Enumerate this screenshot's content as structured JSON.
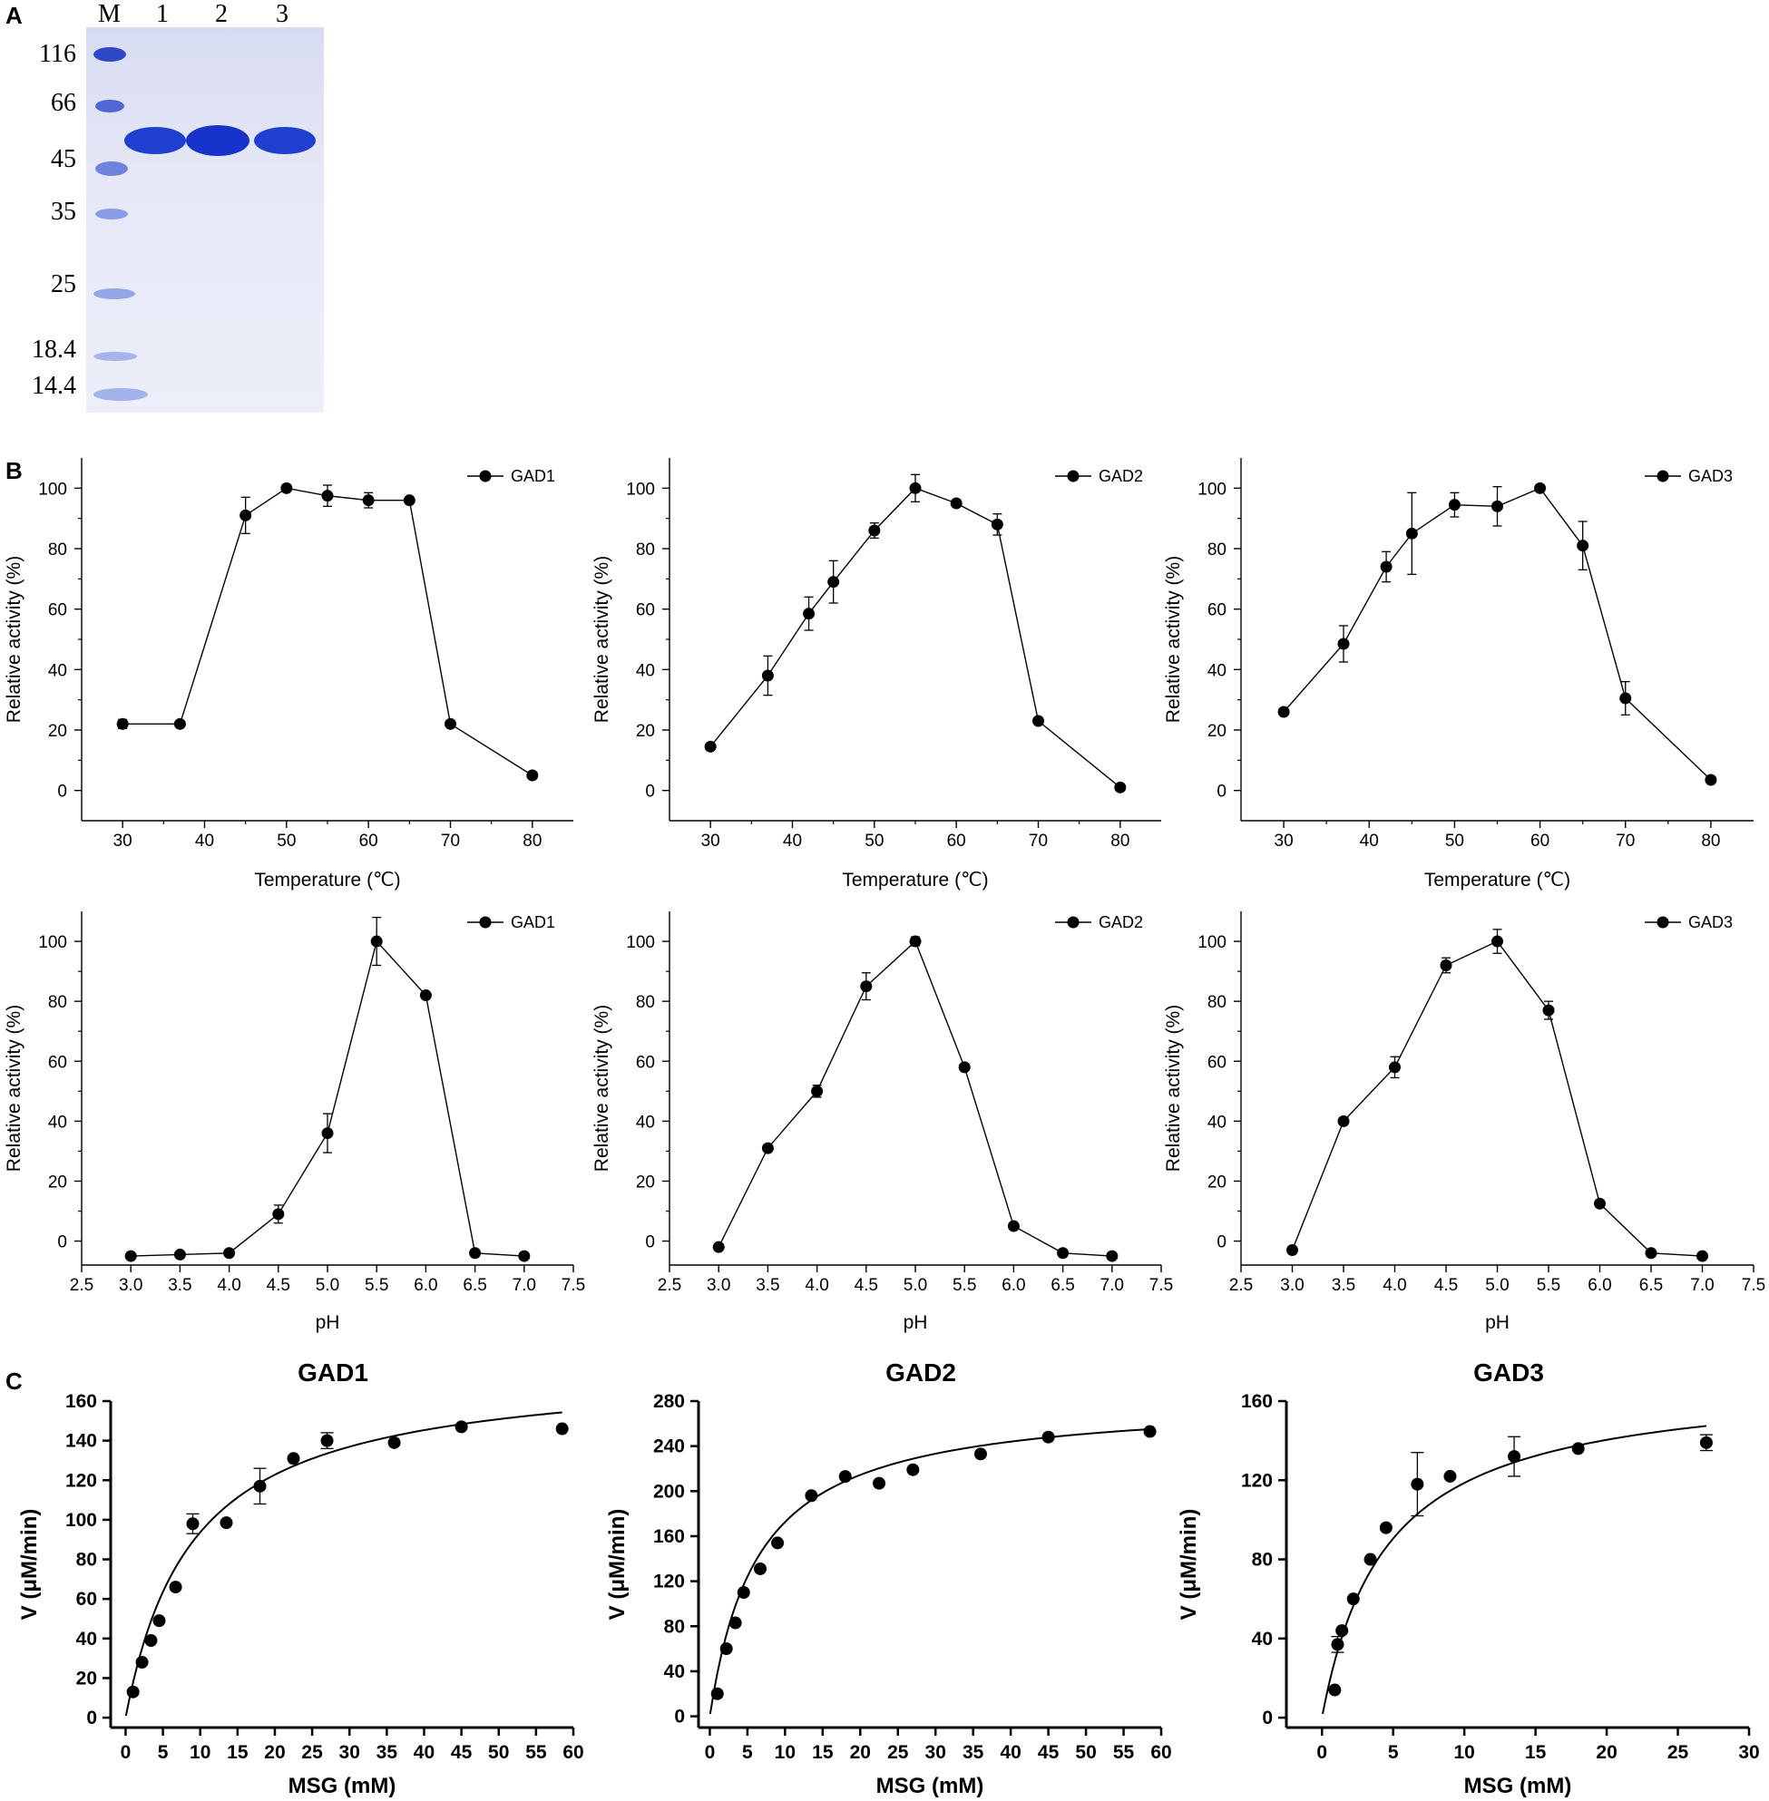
{
  "panels": {
    "a": "A",
    "b": "B",
    "c": "C"
  },
  "gel": {
    "lane_labels": [
      "M",
      "1",
      "2",
      "3"
    ],
    "marker_labels": [
      "116",
      "66",
      "45",
      "35",
      "25",
      "18.4",
      "14.4"
    ],
    "band_color": "#1f3fd0"
  },
  "chart_data": [
    {
      "id": "temp-gad1",
      "type": "line",
      "legend": "GAD1",
      "xlabel": "Temperature (℃)",
      "ylabel": "Relative activity (%)",
      "xlim": [
        25,
        85
      ],
      "ylim": [
        -10,
        110
      ],
      "xticks": [
        30,
        40,
        50,
        60,
        70,
        80
      ],
      "yticks": [
        0,
        20,
        40,
        60,
        80,
        100
      ],
      "x": [
        30,
        37,
        45,
        50,
        55,
        60,
        65,
        70,
        80
      ],
      "y": [
        22,
        22,
        91,
        100,
        97.5,
        96,
        96,
        22,
        5
      ],
      "err": [
        1.5,
        0,
        6,
        0,
        3.5,
        2.5,
        0,
        0,
        0
      ]
    },
    {
      "id": "temp-gad2",
      "type": "line",
      "legend": "GAD2",
      "xlabel": "Temperature (℃)",
      "ylabel": "Relative activity (%)",
      "xlim": [
        25,
        85
      ],
      "ylim": [
        -10,
        110
      ],
      "xticks": [
        30,
        40,
        50,
        60,
        70,
        80
      ],
      "yticks": [
        0,
        20,
        40,
        60,
        80,
        100
      ],
      "x": [
        30,
        37,
        42,
        45,
        50,
        55,
        60,
        65,
        70,
        80
      ],
      "y": [
        14.5,
        38,
        58.5,
        69,
        86,
        100,
        95,
        88,
        23,
        1
      ],
      "err": [
        0,
        6.5,
        5.5,
        7,
        2.5,
        4.5,
        0,
        3.5,
        0,
        0
      ]
    },
    {
      "id": "temp-gad3",
      "type": "line",
      "legend": "GAD3",
      "xlabel": "Temperature (℃)",
      "ylabel": "Relative activity (%)",
      "xlim": [
        25,
        85
      ],
      "ylim": [
        -10,
        110
      ],
      "xticks": [
        30,
        40,
        50,
        60,
        70,
        80
      ],
      "yticks": [
        0,
        20,
        40,
        60,
        80,
        100
      ],
      "x": [
        30,
        37,
        42,
        45,
        50,
        55,
        60,
        65,
        70,
        80
      ],
      "y": [
        26,
        48.5,
        74,
        85,
        94.5,
        94,
        100,
        81,
        30.5,
        3.5
      ],
      "err": [
        0,
        6,
        5,
        13.5,
        4,
        6.5,
        0,
        8,
        5.5,
        0
      ]
    },
    {
      "id": "ph-gad1",
      "type": "line",
      "legend": "GAD1",
      "xlabel": "pH",
      "ylabel": "Relative activity (%)",
      "xlim": [
        2.5,
        7.5
      ],
      "ylim": [
        -8,
        110
      ],
      "xticks": [
        2.5,
        3.0,
        3.5,
        4.0,
        4.5,
        5.0,
        5.5,
        6.0,
        6.5,
        7.0,
        7.5
      ],
      "yticks": [
        0,
        20,
        40,
        60,
        80,
        100
      ],
      "x": [
        3.0,
        3.5,
        4.0,
        4.5,
        5.0,
        5.5,
        6.0,
        6.5,
        7.0
      ],
      "y": [
        -5,
        -4.5,
        -4,
        9,
        36,
        100,
        82,
        -4,
        -5
      ],
      "err": [
        0,
        0,
        0,
        3,
        6.5,
        8,
        0,
        0,
        0
      ]
    },
    {
      "id": "ph-gad2",
      "type": "line",
      "legend": "GAD2",
      "xlabel": "pH",
      "ylabel": "Relative activity (%)",
      "xlim": [
        2.5,
        7.5
      ],
      "ylim": [
        -8,
        110
      ],
      "xticks": [
        2.5,
        3.0,
        3.5,
        4.0,
        4.5,
        5.0,
        5.5,
        6.0,
        6.5,
        7.0,
        7.5
      ],
      "yticks": [
        0,
        20,
        40,
        60,
        80,
        100
      ],
      "x": [
        3.0,
        3.5,
        4.0,
        4.5,
        5.0,
        5.5,
        6.0,
        6.5,
        7.0
      ],
      "y": [
        -2,
        31,
        50,
        85,
        100,
        58,
        5,
        -4,
        -5
      ],
      "err": [
        0,
        0,
        2,
        4.5,
        1.5,
        0,
        0,
        0,
        0
      ]
    },
    {
      "id": "ph-gad3",
      "type": "line",
      "legend": "GAD3",
      "xlabel": "pH",
      "ylabel": "Relative activity (%)",
      "xlim": [
        2.5,
        7.5
      ],
      "ylim": [
        -8,
        110
      ],
      "xticks": [
        2.5,
        3.0,
        3.5,
        4.0,
        4.5,
        5.0,
        5.5,
        6.0,
        6.5,
        7.0,
        7.5
      ],
      "yticks": [
        0,
        20,
        40,
        60,
        80,
        100
      ],
      "x": [
        3.0,
        3.5,
        4.0,
        4.5,
        5.0,
        5.5,
        6.0,
        6.5,
        7.0
      ],
      "y": [
        -3,
        40,
        58,
        92,
        100,
        77,
        12.5,
        -4,
        -5
      ],
      "err": [
        0,
        0,
        3.5,
        2.5,
        4,
        3,
        0,
        0,
        0
      ]
    },
    {
      "id": "kin-gad1",
      "type": "scatter",
      "title": "GAD1",
      "xlabel": "MSG (mM)",
      "ylabel": "V (μM/min)",
      "xlim": [
        -2,
        60
      ],
      "ylim": [
        -5,
        160
      ],
      "xticks": [
        0,
        5,
        10,
        15,
        20,
        25,
        30,
        35,
        40,
        45,
        50,
        55,
        60
      ],
      "yticks": [
        0,
        20,
        40,
        60,
        80,
        100,
        120,
        140,
        160
      ],
      "x": [
        1,
        2.2,
        3.4,
        4.5,
        6.7,
        9,
        13.5,
        18,
        22.5,
        27,
        36,
        45,
        58.5
      ],
      "y": [
        13,
        28,
        39,
        49,
        66,
        98,
        98.5,
        117,
        131,
        140,
        139,
        147,
        146
      ],
      "err": [
        0,
        0,
        0,
        0,
        0,
        5,
        0,
        9,
        0,
        4,
        0,
        0,
        0
      ],
      "fit": {
        "vmax": 178,
        "km": 9.0
      }
    },
    {
      "id": "kin-gad2",
      "type": "scatter",
      "title": "GAD2",
      "xlabel": "MSG (mM)",
      "ylabel": "V (μM/min)",
      "xlim": [
        -1.5,
        60
      ],
      "ylim": [
        -10,
        280
      ],
      "xticks": [
        0,
        5,
        10,
        15,
        20,
        25,
        30,
        35,
        40,
        45,
        50,
        55,
        60
      ],
      "yticks": [
        0,
        40,
        80,
        120,
        160,
        200,
        240,
        280
      ],
      "x": [
        1,
        2.2,
        3.4,
        4.5,
        6.7,
        9,
        13.5,
        18,
        22.5,
        27,
        36,
        45,
        58.5
      ],
      "y": [
        20,
        60,
        83,
        110,
        131,
        154,
        196,
        213,
        207,
        219,
        233,
        248,
        253
      ],
      "err": [
        0,
        0,
        0,
        0,
        0,
        0,
        0,
        0,
        0,
        0,
        0,
        0,
        0
      ],
      "fit": {
        "vmax": 283,
        "km": 6.4
      }
    },
    {
      "id": "kin-gad3",
      "type": "scatter",
      "title": "GAD3",
      "xlabel": "MSG (mM)",
      "ylabel": "V (μM/min)",
      "xlim": [
        -2.5,
        30
      ],
      "ylim": [
        -5,
        160
      ],
      "xticks": [
        0,
        5,
        10,
        15,
        20,
        25,
        30
      ],
      "yticks": [
        0,
        40,
        80,
        120,
        160
      ],
      "x": [
        0.9,
        1.1,
        1.4,
        2.2,
        3.4,
        4.5,
        6.7,
        9,
        13.5,
        18,
        27
      ],
      "y": [
        14,
        37,
        44,
        60,
        80,
        96,
        118,
        122,
        132,
        136,
        139
      ],
      "err": [
        0,
        4,
        0,
        0,
        0,
        0,
        16,
        0,
        10,
        0,
        4
      ],
      "fit": {
        "vmax": 172,
        "km": 4.5
      }
    }
  ]
}
